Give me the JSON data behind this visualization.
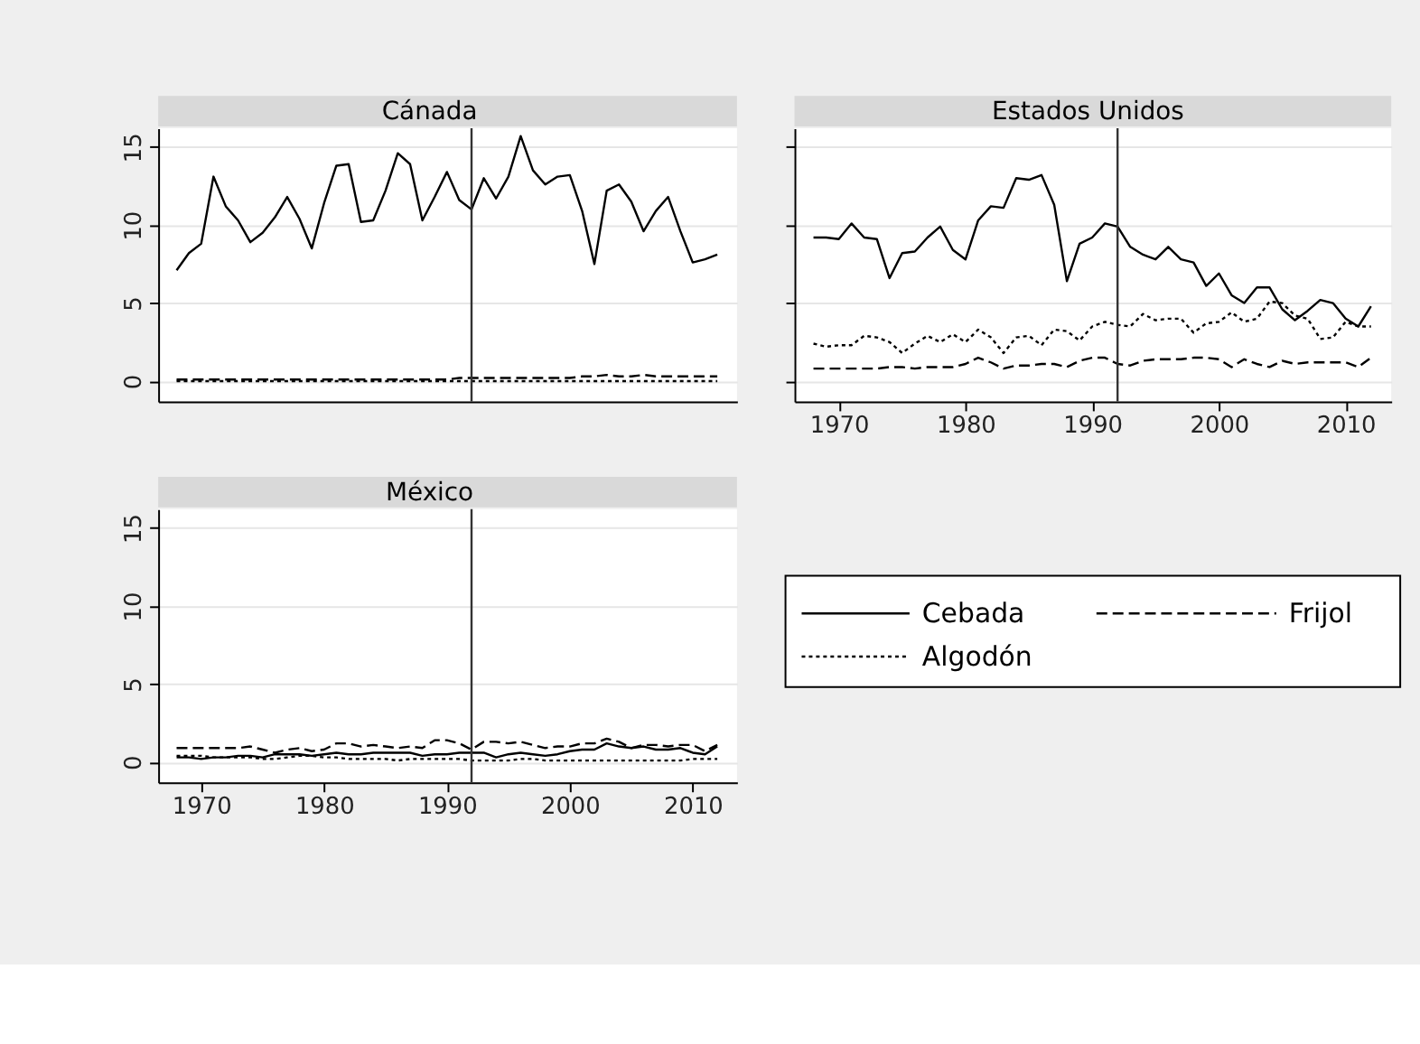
{
  "chart_data": [
    {
      "type": "line",
      "title": "Cánada",
      "x": [
        1968,
        1969,
        1970,
        1971,
        1972,
        1973,
        1974,
        1975,
        1976,
        1977,
        1978,
        1979,
        1980,
        1981,
        1982,
        1983,
        1984,
        1985,
        1986,
        1987,
        1988,
        1989,
        1990,
        1991,
        1992,
        1993,
        1994,
        1995,
        1996,
        1997,
        1998,
        1999,
        2000,
        2001,
        2002,
        2003,
        2004,
        2005,
        2006,
        2007,
        2008,
        2009,
        2010,
        2011,
        2012
      ],
      "series": [
        {
          "name": "Cebada",
          "color": "#000000",
          "line_style": "solid",
          "values": [
            7.1,
            8.2,
            8.8,
            13.1,
            11.2,
            10.3,
            8.9,
            9.5,
            10.5,
            11.8,
            10.4,
            8.5,
            11.4,
            13.8,
            13.9,
            10.2,
            10.3,
            12.2,
            14.6,
            13.9,
            10.3,
            11.8,
            13.4,
            11.6,
            11.0,
            13.0,
            11.7,
            13.1,
            15.7,
            13.5,
            12.6,
            13.1,
            13.2,
            10.9,
            7.5,
            12.2,
            12.6,
            11.5,
            9.6,
            10.9,
            11.8,
            9.6,
            7.6,
            7.8,
            8.1
          ]
        },
        {
          "name": "Frijol",
          "color": "#000000",
          "line_style": "dashed",
          "values": [
            0.1,
            0.1,
            0.1,
            0.1,
            0.1,
            0.1,
            0.1,
            0.1,
            0.1,
            0.1,
            0.1,
            0.1,
            0.1,
            0.1,
            0.1,
            0.1,
            0.1,
            0.1,
            0.1,
            0.1,
            0.1,
            0.1,
            0.1,
            0.2,
            0.2,
            0.2,
            0.2,
            0.2,
            0.2,
            0.2,
            0.2,
            0.2,
            0.2,
            0.3,
            0.3,
            0.4,
            0.3,
            0.3,
            0.4,
            0.3,
            0.3,
            0.3,
            0.3,
            0.3,
            0.3
          ]
        },
        {
          "name": "Algodón",
          "color": "#000000",
          "line_style": "dotted",
          "values": [
            0,
            0,
            0,
            0,
            0,
            0,
            0,
            0,
            0,
            0,
            0,
            0,
            0,
            0,
            0,
            0,
            0,
            0,
            0,
            0,
            0,
            0,
            0,
            0,
            0,
            0,
            0,
            0,
            0,
            0,
            0,
            0,
            0,
            0,
            0,
            0,
            0,
            0,
            0,
            0,
            0,
            0,
            0,
            0,
            0
          ]
        }
      ],
      "xlim": [
        1966.5,
        2013.6
      ],
      "ylim": [
        -1.3,
        16.2
      ],
      "xticks": [
        1970,
        1980,
        1990,
        2000,
        2010
      ],
      "yticks": [
        0,
        5,
        10,
        15
      ],
      "grid": "y",
      "tick_labels": "y",
      "legend": "bottom right",
      "ref_lines": [
        {
          "axis": "x",
          "value": 1992
        }
      ]
    },
    {
      "type": "line",
      "title": "Estados Unidos",
      "x": [
        1968,
        1969,
        1970,
        1971,
        1972,
        1973,
        1974,
        1975,
        1976,
        1977,
        1978,
        1979,
        1980,
        1981,
        1982,
        1983,
        1984,
        1985,
        1986,
        1987,
        1988,
        1989,
        1990,
        1991,
        1992,
        1993,
        1994,
        1995,
        1996,
        1997,
        1998,
        1999,
        2000,
        2001,
        2002,
        2003,
        2004,
        2005,
        2006,
        2007,
        2008,
        2009,
        2010,
        2011,
        2012
      ],
      "series": [
        {
          "color": "#000000",
          "line_style": "solid",
          "values": [
            9.2,
            9.2,
            9.1,
            10.1,
            9.2,
            9.1,
            6.6,
            8.2,
            8.3,
            9.2,
            9.9,
            8.4,
            7.8,
            10.3,
            11.2,
            11.1,
            13.0,
            12.9,
            13.2,
            11.3,
            6.4,
            8.8,
            9.2,
            10.1,
            9.9,
            8.6,
            8.1,
            7.8,
            8.6,
            7.8,
            7.6,
            6.1,
            6.9,
            5.5,
            5.0,
            6.0,
            6.0,
            4.6,
            3.9,
            4.5,
            5.2,
            5.0,
            4.0,
            3.5,
            4.8
          ]
        },
        {
          "color": "#000000",
          "line_style": "dashed",
          "values": [
            0.8,
            0.8,
            0.8,
            0.8,
            0.8,
            0.8,
            0.9,
            0.9,
            0.8,
            0.9,
            0.9,
            0.9,
            1.1,
            1.5,
            1.2,
            0.8,
            1.0,
            1.0,
            1.1,
            1.1,
            0.9,
            1.3,
            1.5,
            1.5,
            1.1,
            1.0,
            1.3,
            1.4,
            1.4,
            1.4,
            1.5,
            1.5,
            1.4,
            0.9,
            1.4,
            1.1,
            0.9,
            1.3,
            1.1,
            1.2,
            1.2,
            1.2,
            1.2,
            0.9,
            1.5
          ]
        },
        {
          "color": "#000000",
          "line_style": "dotted",
          "values": [
            2.4,
            2.2,
            2.3,
            2.3,
            2.9,
            2.8,
            2.5,
            1.8,
            2.4,
            2.9,
            2.5,
            3.0,
            2.5,
            3.3,
            2.8,
            1.8,
            2.8,
            2.9,
            2.3,
            3.3,
            3.2,
            2.6,
            3.5,
            3.8,
            3.6,
            3.5,
            4.3,
            3.9,
            4.0,
            4.0,
            3.1,
            3.7,
            3.8,
            4.4,
            3.8,
            4.0,
            5.1,
            5.0,
            4.2,
            4.0,
            2.7,
            2.8,
            3.8,
            3.5,
            3.5
          ]
        }
      ],
      "xlim": [
        1966.5,
        2013.6
      ],
      "ylim": [
        -1.3,
        16.2
      ],
      "xticks": [
        1970,
        1980,
        1990,
        2000,
        2010
      ],
      "yticks": [
        0,
        5,
        10,
        15
      ],
      "grid": "y",
      "tick_labels": "x",
      "ref_lines": [
        {
          "axis": "x",
          "value": 1992
        }
      ]
    },
    {
      "type": "line",
      "title": "México",
      "x": [
        1968,
        1969,
        1970,
        1971,
        1972,
        1973,
        1974,
        1975,
        1976,
        1977,
        1978,
        1979,
        1980,
        1981,
        1982,
        1983,
        1984,
        1985,
        1986,
        1987,
        1988,
        1989,
        1990,
        1991,
        1992,
        1993,
        1994,
        1995,
        1996,
        1997,
        1998,
        1999,
        2000,
        2001,
        2002,
        2003,
        2004,
        2005,
        2006,
        2007,
        2008,
        2009,
        2010,
        2011,
        2012
      ],
      "series": [
        {
          "color": "#000000",
          "line_style": "solid",
          "values": [
            0.3,
            0.3,
            0.2,
            0.3,
            0.3,
            0.4,
            0.4,
            0.3,
            0.5,
            0.5,
            0.5,
            0.4,
            0.5,
            0.6,
            0.5,
            0.5,
            0.6,
            0.6,
            0.6,
            0.6,
            0.4,
            0.5,
            0.5,
            0.6,
            0.6,
            0.6,
            0.3,
            0.5,
            0.6,
            0.5,
            0.4,
            0.5,
            0.7,
            0.8,
            0.8,
            1.2,
            1.0,
            0.9,
            1.0,
            0.8,
            0.8,
            0.9,
            0.6,
            0.5,
            1.0
          ]
        },
        {
          "color": "#000000",
          "line_style": "dashed",
          "values": [
            0.9,
            0.9,
            0.9,
            0.9,
            0.9,
            0.9,
            1.0,
            0.8,
            0.6,
            0.8,
            0.9,
            0.7,
            0.8,
            1.2,
            1.2,
            1.0,
            1.1,
            1.0,
            0.9,
            1.0,
            0.9,
            1.4,
            1.4,
            1.2,
            0.8,
            1.3,
            1.3,
            1.2,
            1.3,
            1.1,
            0.9,
            1.0,
            1.0,
            1.2,
            1.2,
            1.5,
            1.3,
            0.9,
            1.1,
            1.1,
            1.0,
            1.1,
            1.1,
            0.7,
            1.1
          ]
        },
        {
          "color": "#000000",
          "line_style": "dotted",
          "values": [
            0.4,
            0.4,
            0.4,
            0.3,
            0.3,
            0.3,
            0.3,
            0.2,
            0.2,
            0.3,
            0.4,
            0.4,
            0.3,
            0.3,
            0.2,
            0.2,
            0.2,
            0.2,
            0.1,
            0.2,
            0.2,
            0.2,
            0.2,
            0.2,
            0.1,
            0.1,
            0.1,
            0.1,
            0.2,
            0.2,
            0.1,
            0.1,
            0.1,
            0.1,
            0.1,
            0.1,
            0.1,
            0.1,
            0.1,
            0.1,
            0.1,
            0.1,
            0.2,
            0.2,
            0.2
          ]
        }
      ],
      "xlim": [
        1966.5,
        2013.6
      ],
      "ylim": [
        -1.3,
        16.2
      ],
      "xticks": [
        1970,
        1980,
        1990,
        2000,
        2010
      ],
      "yticks": [
        0,
        5,
        10,
        15
      ],
      "grid": "y",
      "ref_lines": [
        {
          "axis": "x",
          "value": 1992
        }
      ]
    }
  ]
}
